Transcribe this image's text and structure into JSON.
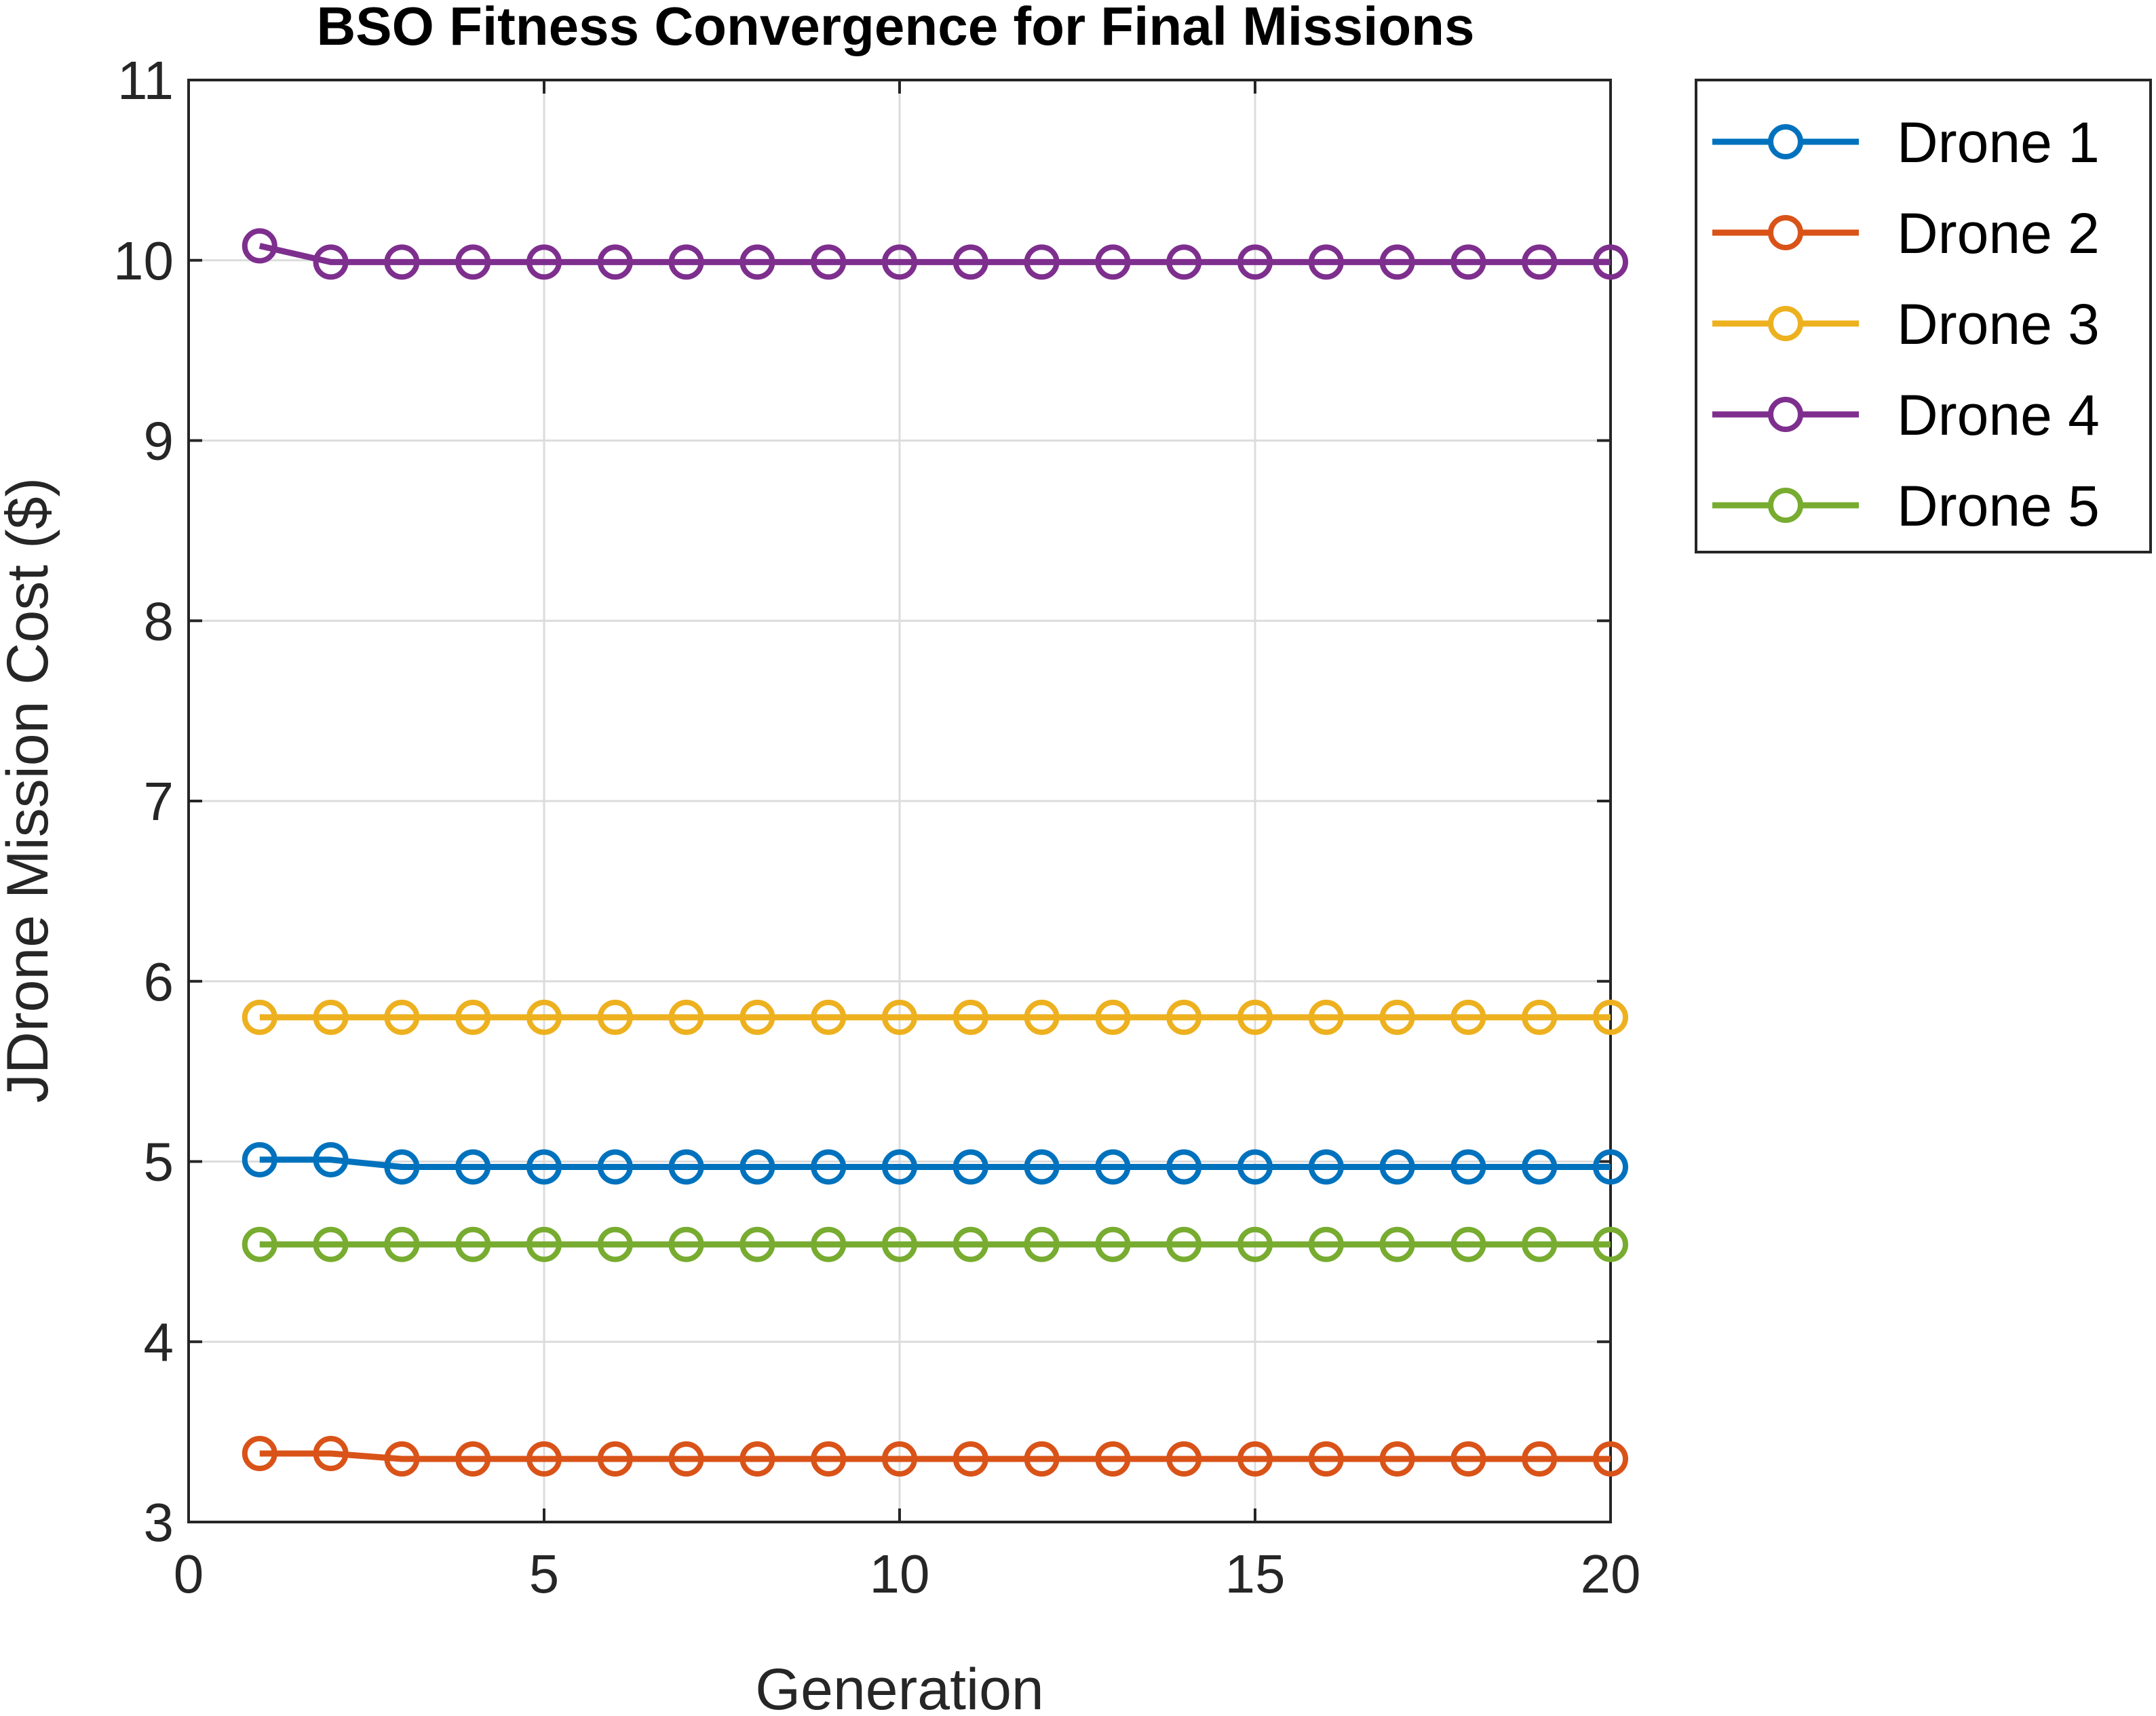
{
  "chart_data": {
    "type": "line",
    "title": "BSO Fitness Convergence for Final Missions",
    "xlabel": "Generation",
    "ylabel": "JDrone Mission Cost ($)",
    "xlim": [
      0,
      20
    ],
    "ylim": [
      3,
      11
    ],
    "xticks": [
      0,
      5,
      10,
      15,
      20
    ],
    "yticks": [
      3,
      4,
      5,
      6,
      7,
      8,
      9,
      10,
      11
    ],
    "grid": true,
    "legend_position": "outside-top-right",
    "marker": "circle",
    "x": [
      1,
      2,
      3,
      4,
      5,
      6,
      7,
      8,
      9,
      10,
      11,
      12,
      13,
      14,
      15,
      16,
      17,
      18,
      19,
      20
    ],
    "series": [
      {
        "name": "Drone 1",
        "color": "#0072BD",
        "values": [
          5.01,
          5.01,
          4.97,
          4.97,
          4.97,
          4.97,
          4.97,
          4.97,
          4.97,
          4.97,
          4.97,
          4.97,
          4.97,
          4.97,
          4.97,
          4.97,
          4.97,
          4.97,
          4.97,
          4.97
        ]
      },
      {
        "name": "Drone 2",
        "color": "#D95319",
        "values": [
          3.38,
          3.38,
          3.35,
          3.35,
          3.35,
          3.35,
          3.35,
          3.35,
          3.35,
          3.35,
          3.35,
          3.35,
          3.35,
          3.35,
          3.35,
          3.35,
          3.35,
          3.35,
          3.35,
          3.35
        ]
      },
      {
        "name": "Drone 3",
        "color": "#EDB120",
        "values": [
          5.8,
          5.8,
          5.8,
          5.8,
          5.8,
          5.8,
          5.8,
          5.8,
          5.8,
          5.8,
          5.8,
          5.8,
          5.8,
          5.8,
          5.8,
          5.8,
          5.8,
          5.8,
          5.8,
          5.8
        ]
      },
      {
        "name": "Drone 4",
        "color": "#7E2F8E",
        "values": [
          10.08,
          9.99,
          9.99,
          9.99,
          9.99,
          9.99,
          9.99,
          9.99,
          9.99,
          9.99,
          9.99,
          9.99,
          9.99,
          9.99,
          9.99,
          9.99,
          9.99,
          9.99,
          9.99,
          9.99
        ]
      },
      {
        "name": "Drone 5",
        "color": "#77AC30",
        "values": [
          4.54,
          4.54,
          4.54,
          4.54,
          4.54,
          4.54,
          4.54,
          4.54,
          4.54,
          4.54,
          4.54,
          4.54,
          4.54,
          4.54,
          4.54,
          4.54,
          4.54,
          4.54,
          4.54,
          4.54
        ]
      }
    ]
  }
}
